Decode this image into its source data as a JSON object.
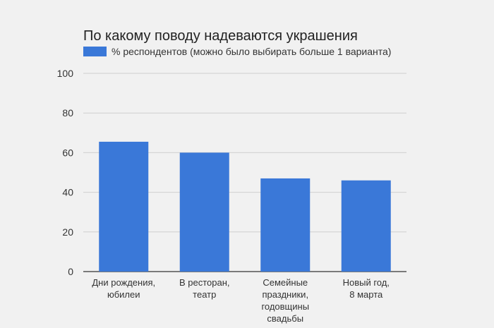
{
  "chart_data": {
    "type": "bar",
    "title": "По какому поводу надеваются украшения",
    "xlabel": "",
    "ylabel": "",
    "ylim": [
      0,
      100
    ],
    "yticks": [
      0,
      20,
      40,
      60,
      80,
      100
    ],
    "grid": true,
    "legend_position": "top-left",
    "categories": [
      "Дни рождения, юбилеи",
      "В ресторан, театр",
      "Семейные праздники, годовщины свадьбы",
      "Новый год, 8 марта"
    ],
    "category_lines": [
      [
        "Дни рождения,",
        "юбилеи"
      ],
      [
        "В ресторан,",
        "театр"
      ],
      [
        "Семейные",
        "праздники,",
        "годовщины",
        "свадьбы"
      ],
      [
        "Новый год,",
        "8 марта"
      ]
    ],
    "series": [
      {
        "name": "% респондентов (можно было выбирать больше 1 варианта)",
        "color": "#3a78d8",
        "values": [
          65.5,
          60,
          47,
          46
        ]
      }
    ]
  }
}
